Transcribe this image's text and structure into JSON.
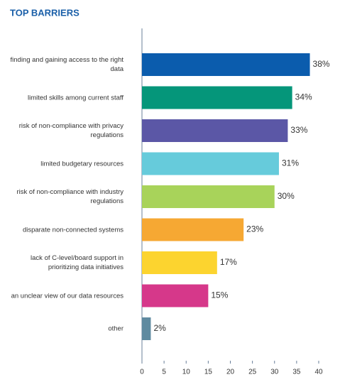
{
  "chart_data": {
    "type": "hbar",
    "title": "TOP BARRIERS",
    "categories": [
      "finding and gaining access to the right data",
      "limited skills among current staff",
      "risk of non-compliance with privacy regulations",
      "limited budgetary resources",
      "risk of non-compliance with industry regulations",
      "disparate non-connected systems",
      "lack of C-level/board support in prioritizing data initiatives",
      "an unclear view of our data resources",
      "other"
    ],
    "values": [
      38,
      34,
      33,
      31,
      30,
      23,
      17,
      15,
      2
    ],
    "value_labels": [
      "38%",
      "34%",
      "33%",
      "31%",
      "30%",
      "23%",
      "17%",
      "15%",
      "2%"
    ],
    "colors": [
      "#0b5cad",
      "#05967a",
      "#5b57a6",
      "#66cbdb",
      "#a8d35a",
      "#f6a833",
      "#fcd42f",
      "#d6388a",
      "#5f8aa0"
    ],
    "xlim": [
      0,
      40
    ],
    "xticks": [
      0,
      5,
      10,
      15,
      20,
      25,
      30,
      35,
      40
    ]
  }
}
